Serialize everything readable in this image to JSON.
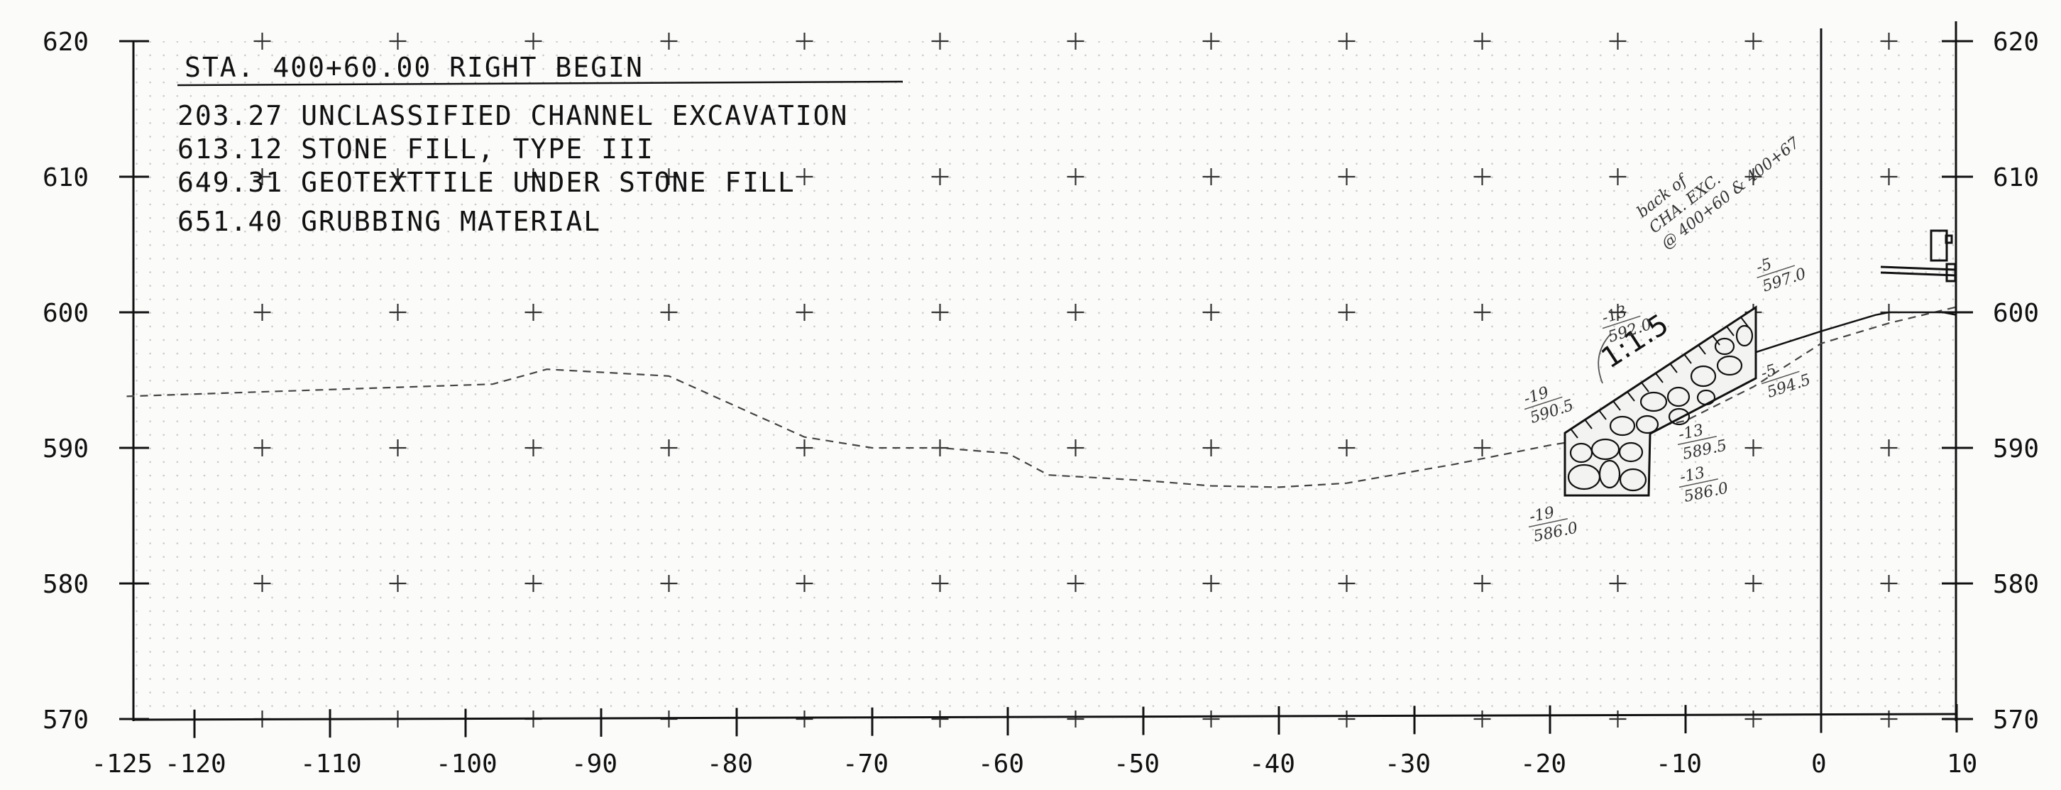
{
  "title": "STA. 400+60.00 RIGHT BEGIN",
  "quantities": [
    "203.27 UNCLASSIFIED CHANNEL EXCAVATION",
    "613.12 STONE FILL, TYPE III",
    "649.31 GEOTEXTTILE UNDER STONE FILL",
    "651.40 GRUBBING MATERIAL"
  ],
  "x_ticks": [
    "-125",
    "-120",
    "-110",
    "-100",
    "-90",
    "-80",
    "-70",
    "-60",
    "-50",
    "-40",
    "-30",
    "-20",
    "-10",
    "0",
    "10"
  ],
  "y_ticks_left": [
    "620",
    "610",
    "600",
    "590",
    "580",
    "570"
  ],
  "y_ticks_right": [
    "620",
    "610",
    "600",
    "590",
    "580",
    "570"
  ],
  "slope_label": "1:1.5",
  "handwritten_note": [
    "back of",
    "CHA. EXC.",
    "@ 400+60 & 400+67"
  ],
  "point_labels": [
    {
      "offset": "-5",
      "elev": "597.0"
    },
    {
      "offset": "-13",
      "elev": "592.0"
    },
    {
      "offset": "-19",
      "elev": "590.5"
    },
    {
      "offset": "-5",
      "elev": "594.5"
    },
    {
      "offset": "-13",
      "elev": "589.5"
    },
    {
      "offset": "-13",
      "elev": "586.0"
    },
    {
      "offset": "-19",
      "elev": "586.0"
    }
  ],
  "colors": {
    "paper": "#fbfbfa",
    "ink": "#111111",
    "pencil": "#555555",
    "grid_dot": "#c8c8c8"
  },
  "chart_data": {
    "type": "line",
    "xlim": [
      -125,
      10
    ],
    "ylim": [
      570,
      620
    ],
    "xlabel": "",
    "ylabel": "",
    "grid": true,
    "series": [
      {
        "x": [
          -125,
          -98,
          -94,
          -85,
          -75,
          -70,
          -65,
          -60,
          -57,
          -50,
          -45,
          -40,
          -35,
          -27,
          -20,
          -15,
          -10,
          -5,
          0,
          5,
          10
        ],
        "y": [
          593.8,
          594.7,
          595.8,
          595.3,
          590.8,
          590.0,
          590.0,
          589.6,
          588.0,
          587.6,
          587.2,
          587.1,
          587.4,
          588.8,
          590.2,
          591.0,
          592.0,
          594.5,
          597.7,
          599.2,
          600.4
        ]
      },
      {
        "x": [
          -5,
          0,
          4,
          5,
          9,
          10
        ],
        "y": [
          597.0,
          598.6,
          599.8,
          600.0,
          600.0,
          599.8
        ]
      }
    ]
  }
}
